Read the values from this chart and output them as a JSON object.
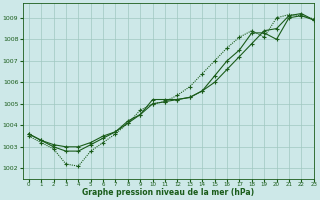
{
  "xlabel": "Graphe pression niveau de la mer (hPa)",
  "xlim": [
    -0.5,
    23
  ],
  "ylim": [
    1001.5,
    1009.7
  ],
  "yticks": [
    1002,
    1003,
    1004,
    1005,
    1006,
    1007,
    1008,
    1009
  ],
  "xticks": [
    0,
    1,
    2,
    3,
    4,
    5,
    6,
    7,
    8,
    9,
    10,
    11,
    12,
    13,
    14,
    15,
    16,
    17,
    18,
    19,
    20,
    21,
    22,
    23
  ],
  "bg_color": "#cde8e8",
  "grid_color": "#a0c8c0",
  "line_color": "#1a5c1a",
  "line1_x": [
    0,
    1,
    2,
    3,
    4,
    5,
    6,
    7,
    8,
    9,
    10,
    11,
    12,
    13,
    14,
    15,
    16,
    17,
    18,
    19,
    20,
    21,
    22,
    23
  ],
  "line1_y": [
    1003.6,
    1003.3,
    1003.1,
    1003.0,
    1003.0,
    1003.2,
    1003.5,
    1003.7,
    1004.2,
    1004.5,
    1005.2,
    1005.2,
    1005.2,
    1005.3,
    1005.6,
    1006.3,
    1007.0,
    1007.5,
    1008.3,
    1008.3,
    1008.0,
    1009.0,
    1009.1,
    1008.9
  ],
  "line2_x": [
    0,
    1,
    2,
    3,
    4,
    5,
    6,
    7,
    8,
    9,
    10,
    11,
    12,
    13,
    14,
    15,
    16,
    17,
    18,
    19,
    20,
    21,
    22,
    23
  ],
  "line2_y": [
    1003.6,
    1003.3,
    1003.0,
    1002.8,
    1002.8,
    1003.1,
    1003.4,
    1003.7,
    1004.1,
    1004.5,
    1005.0,
    1005.1,
    1005.2,
    1005.3,
    1005.6,
    1006.0,
    1006.6,
    1007.2,
    1007.8,
    1008.4,
    1008.5,
    1009.1,
    1009.2,
    1008.9
  ],
  "line3_x": [
    0,
    1,
    2,
    3,
    4,
    5,
    6,
    7,
    8,
    9,
    10,
    11,
    12,
    13,
    14,
    15,
    16,
    17,
    18,
    19,
    20,
    21,
    22,
    23
  ],
  "line3_y": [
    1003.5,
    1003.2,
    1002.9,
    1002.2,
    1002.1,
    1002.8,
    1003.2,
    1003.6,
    1004.1,
    1004.7,
    1005.0,
    1005.1,
    1005.4,
    1005.8,
    1006.4,
    1007.0,
    1007.6,
    1008.1,
    1008.4,
    1008.1,
    1009.0,
    1009.15,
    1009.1,
    1008.95
  ]
}
